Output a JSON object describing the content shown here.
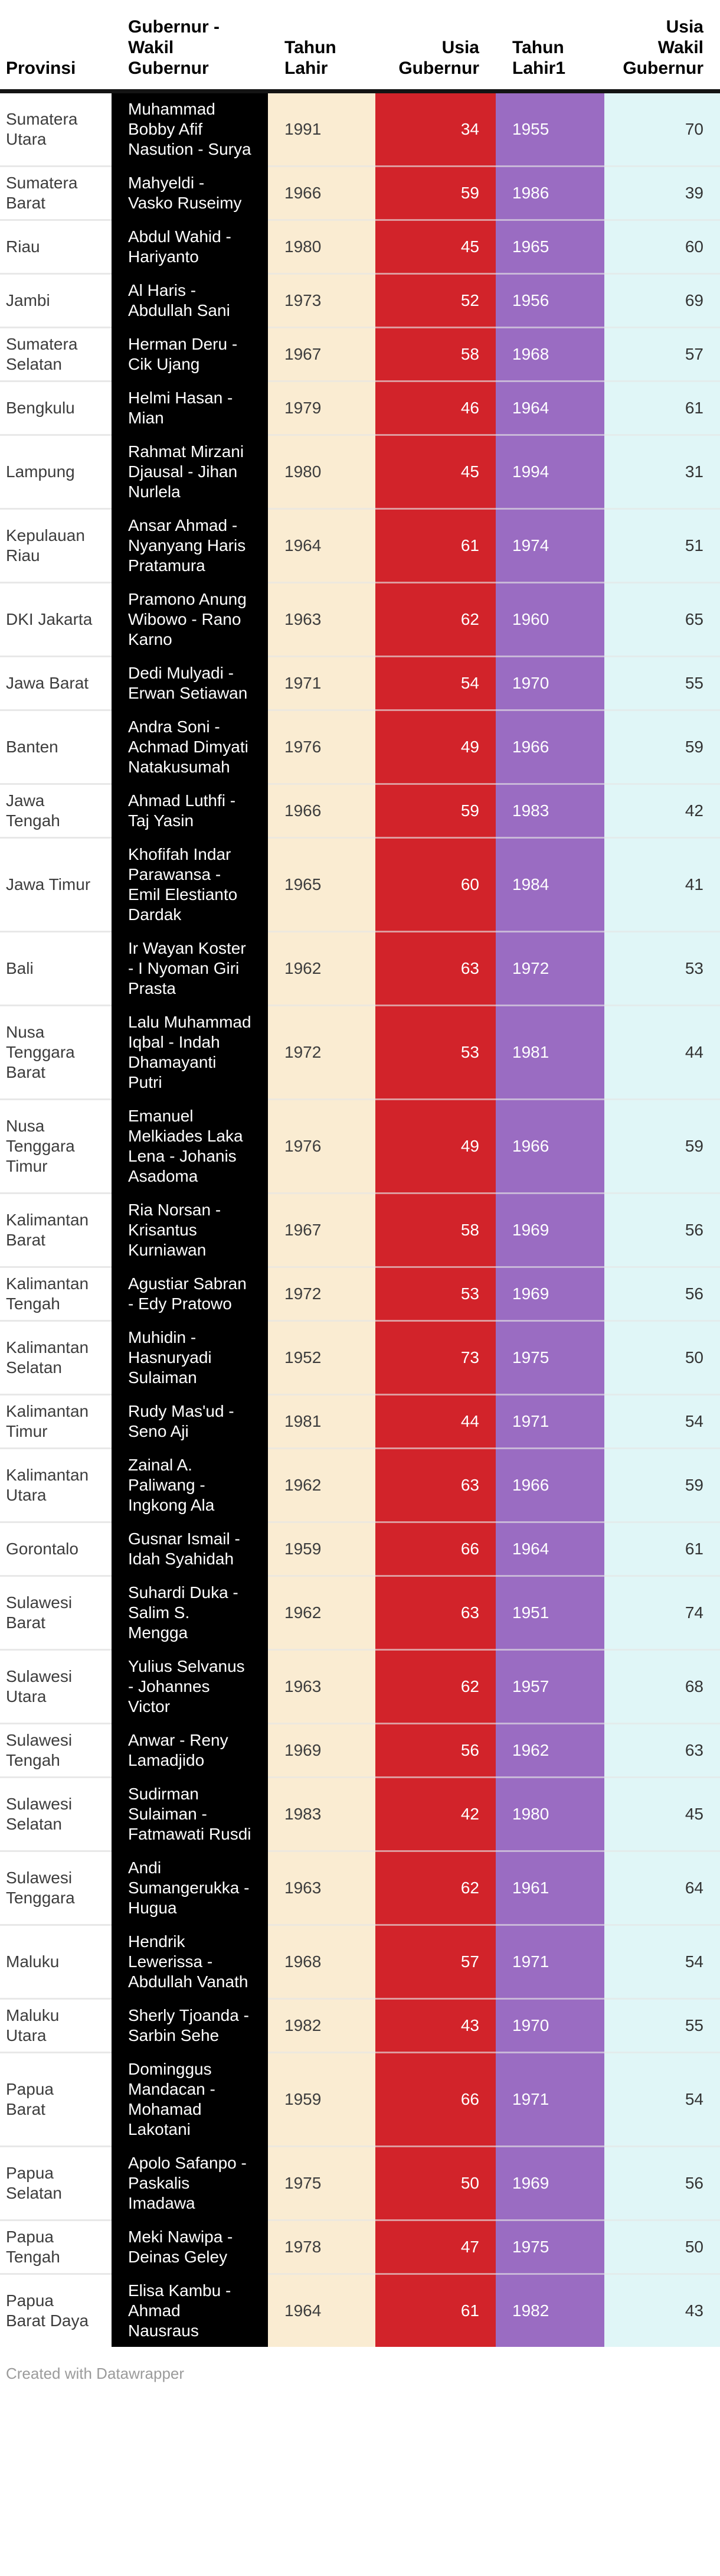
{
  "chart_data": {
    "type": "table",
    "columns": [
      {
        "key": "provinsi",
        "label": "Provinsi",
        "align": "left"
      },
      {
        "key": "nama",
        "label": "Gubernur - Wakil Gubernur",
        "align": "left"
      },
      {
        "key": "tahun_lahir",
        "label": "Tahun Lahir",
        "align": "left"
      },
      {
        "key": "usia_gubernur",
        "label": "Usia Gubernur",
        "align": "right"
      },
      {
        "key": "tahun_lahir1",
        "label": "Tahun Lahir1",
        "align": "left"
      },
      {
        "key": "usia_wakil_gubernur",
        "label": "Usia Wakil Gubernur",
        "align": "right"
      }
    ],
    "rows": [
      {
        "provinsi": "Sumatera Utara",
        "nama": "Muhammad Bobby Afif Nasution - Surya",
        "tahun_lahir": 1991,
        "usia_gubernur": 34,
        "tahun_lahir1": 1955,
        "usia_wakil_gubernur": 70
      },
      {
        "provinsi": "Sumatera Barat",
        "nama": "Mahyeldi - Vasko Ruseimy",
        "tahun_lahir": 1966,
        "usia_gubernur": 59,
        "tahun_lahir1": 1986,
        "usia_wakil_gubernur": 39
      },
      {
        "provinsi": "Riau",
        "nama": "Abdul Wahid - Hariyanto",
        "tahun_lahir": 1980,
        "usia_gubernur": 45,
        "tahun_lahir1": 1965,
        "usia_wakil_gubernur": 60
      },
      {
        "provinsi": "Jambi",
        "nama": "Al Haris - Abdullah Sani",
        "tahun_lahir": 1973,
        "usia_gubernur": 52,
        "tahun_lahir1": 1956,
        "usia_wakil_gubernur": 69
      },
      {
        "provinsi": "Sumatera Selatan",
        "nama": "Herman Deru - Cik Ujang",
        "tahun_lahir": 1967,
        "usia_gubernur": 58,
        "tahun_lahir1": 1968,
        "usia_wakil_gubernur": 57
      },
      {
        "provinsi": "Bengkulu",
        "nama": "Helmi Hasan - Mian",
        "tahun_lahir": 1979,
        "usia_gubernur": 46,
        "tahun_lahir1": 1964,
        "usia_wakil_gubernur": 61
      },
      {
        "provinsi": "Lampung",
        "nama": "Rahmat Mirzani Djausal - Jihan Nurlela",
        "tahun_lahir": 1980,
        "usia_gubernur": 45,
        "tahun_lahir1": 1994,
        "usia_wakil_gubernur": 31
      },
      {
        "provinsi": "Kepulauan Riau",
        "nama": "Ansar Ahmad - Nyanyang Haris Pratamura",
        "tahun_lahir": 1964,
        "usia_gubernur": 61,
        "tahun_lahir1": 1974,
        "usia_wakil_gubernur": 51
      },
      {
        "provinsi": "DKI Jakarta",
        "nama": "Pramono Anung Wibowo - Rano Karno",
        "tahun_lahir": 1963,
        "usia_gubernur": 62,
        "tahun_lahir1": 1960,
        "usia_wakil_gubernur": 65
      },
      {
        "provinsi": "Jawa Barat",
        "nama": "Dedi Mulyadi - Erwan Setiawan",
        "tahun_lahir": 1971,
        "usia_gubernur": 54,
        "tahun_lahir1": 1970,
        "usia_wakil_gubernur": 55
      },
      {
        "provinsi": "Banten",
        "nama": "Andra Soni - Achmad Dimyati Natakusumah",
        "tahun_lahir": 1976,
        "usia_gubernur": 49,
        "tahun_lahir1": 1966,
        "usia_wakil_gubernur": 59
      },
      {
        "provinsi": "Jawa Tengah",
        "nama": "Ahmad Luthfi - Taj Yasin",
        "tahun_lahir": 1966,
        "usia_gubernur": 59,
        "tahun_lahir1": 1983,
        "usia_wakil_gubernur": 42
      },
      {
        "provinsi": "Jawa Timur",
        "nama": "Khofifah Indar Parawansa - Emil Elestianto Dardak",
        "tahun_lahir": 1965,
        "usia_gubernur": 60,
        "tahun_lahir1": 1984,
        "usia_wakil_gubernur": 41
      },
      {
        "provinsi": "Bali",
        "nama": "Ir Wayan Koster - I Nyoman Giri Prasta",
        "tahun_lahir": 1962,
        "usia_gubernur": 63,
        "tahun_lahir1": 1972,
        "usia_wakil_gubernur": 53
      },
      {
        "provinsi": "Nusa Tenggara Barat",
        "nama": "Lalu Muhammad Iqbal - Indah Dhamayanti Putri",
        "tahun_lahir": 1972,
        "usia_gubernur": 53,
        "tahun_lahir1": 1981,
        "usia_wakil_gubernur": 44
      },
      {
        "provinsi": "Nusa Tenggara Timur",
        "nama": "Emanuel Melkiades Laka Lena - Johanis Asadoma",
        "tahun_lahir": 1976,
        "usia_gubernur": 49,
        "tahun_lahir1": 1966,
        "usia_wakil_gubernur": 59
      },
      {
        "provinsi": "Kalimantan Barat",
        "nama": "Ria Norsan - Krisantus Kurniawan",
        "tahun_lahir": 1967,
        "usia_gubernur": 58,
        "tahun_lahir1": 1969,
        "usia_wakil_gubernur": 56
      },
      {
        "provinsi": "Kalimantan Tengah",
        "nama": "Agustiar Sabran - Edy Pratowo",
        "tahun_lahir": 1972,
        "usia_gubernur": 53,
        "tahun_lahir1": 1969,
        "usia_wakil_gubernur": 56
      },
      {
        "provinsi": "Kalimantan Selatan",
        "nama": "Muhidin - Hasnuryadi Sulaiman",
        "tahun_lahir": 1952,
        "usia_gubernur": 73,
        "tahun_lahir1": 1975,
        "usia_wakil_gubernur": 50
      },
      {
        "provinsi": "Kalimantan Timur",
        "nama": "Rudy Mas'ud - Seno Aji",
        "tahun_lahir": 1981,
        "usia_gubernur": 44,
        "tahun_lahir1": 1971,
        "usia_wakil_gubernur": 54
      },
      {
        "provinsi": "Kalimantan Utara",
        "nama": "Zainal A. Paliwang - Ingkong Ala",
        "tahun_lahir": 1962,
        "usia_gubernur": 63,
        "tahun_lahir1": 1966,
        "usia_wakil_gubernur": 59
      },
      {
        "provinsi": "Gorontalo",
        "nama": "Gusnar Ismail - Idah Syahidah",
        "tahun_lahir": 1959,
        "usia_gubernur": 66,
        "tahun_lahir1": 1964,
        "usia_wakil_gubernur": 61
      },
      {
        "provinsi": "Sulawesi Barat",
        "nama": "Suhardi Duka - Salim S. Mengga",
        "tahun_lahir": 1962,
        "usia_gubernur": 63,
        "tahun_lahir1": 1951,
        "usia_wakil_gubernur": 74
      },
      {
        "provinsi": "Sulawesi Utara",
        "nama": "Yulius Selvanus - Johannes Victor",
        "tahun_lahir": 1963,
        "usia_gubernur": 62,
        "tahun_lahir1": 1957,
        "usia_wakil_gubernur": 68
      },
      {
        "provinsi": "Sulawesi Tengah",
        "nama": "Anwar - Reny Lamadjido",
        "tahun_lahir": 1969,
        "usia_gubernur": 56,
        "tahun_lahir1": 1962,
        "usia_wakil_gubernur": 63
      },
      {
        "provinsi": "Sulawesi Selatan",
        "nama": "Sudirman Sulaiman - Fatmawati Rusdi",
        "tahun_lahir": 1983,
        "usia_gubernur": 42,
        "tahun_lahir1": 1980,
        "usia_wakil_gubernur": 45
      },
      {
        "provinsi": "Sulawesi Tenggara",
        "nama": "Andi Sumangerukka - Hugua",
        "tahun_lahir": 1963,
        "usia_gubernur": 62,
        "tahun_lahir1": 1961,
        "usia_wakil_gubernur": 64
      },
      {
        "provinsi": "Maluku",
        "nama": "Hendrik Lewerissa - Abdullah Vanath",
        "tahun_lahir": 1968,
        "usia_gubernur": 57,
        "tahun_lahir1": 1971,
        "usia_wakil_gubernur": 54
      },
      {
        "provinsi": "Maluku Utara",
        "nama": "Sherly Tjoanda - Sarbin Sehe",
        "tahun_lahir": 1982,
        "usia_gubernur": 43,
        "tahun_lahir1": 1970,
        "usia_wakil_gubernur": 55
      },
      {
        "provinsi": "Papua Barat",
        "nama": "Dominggus Mandacan - Mohamad Lakotani",
        "tahun_lahir": 1959,
        "usia_gubernur": 66,
        "tahun_lahir1": 1971,
        "usia_wakil_gubernur": 54
      },
      {
        "provinsi": "Papua Selatan",
        "nama": "Apolo Safanpo - Paskalis Imadawa",
        "tahun_lahir": 1975,
        "usia_gubernur": 50,
        "tahun_lahir1": 1969,
        "usia_wakil_gubernur": 56
      },
      {
        "provinsi": "Papua Tengah",
        "nama": "Meki Nawipa - Deinas Geley",
        "tahun_lahir": 1978,
        "usia_gubernur": 47,
        "tahun_lahir1": 1975,
        "usia_wakil_gubernur": 50
      },
      {
        "provinsi": "Papua Barat Daya",
        "nama": "Elisa Kambu - Ahmad Nausraus",
        "tahun_lahir": 1964,
        "usia_gubernur": 61,
        "tahun_lahir1": 1982,
        "usia_wakil_gubernur": 43
      }
    ],
    "layout": {
      "grid": "row-separators-only",
      "legend": "none"
    }
  },
  "colors": {
    "col-name": "#000000",
    "col-birth-gov": "#faecd2",
    "col-age-gov": "#d2232a",
    "col-birth-vice": "#9a6cc2",
    "col-age-vice": "#e0f6f7"
  },
  "footer": {
    "credit": "Created with Datawrapper"
  }
}
